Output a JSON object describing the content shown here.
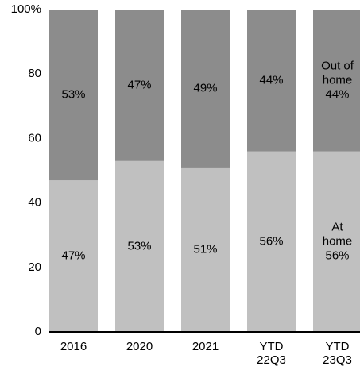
{
  "chart_data": {
    "type": "stacked-bar",
    "categories": [
      "2016",
      "2020",
      "2021",
      "YTD 22Q3",
      "YTD 23Q3"
    ],
    "series": [
      {
        "name": "At home",
        "color": "#c0c0c0",
        "label_color": "#000000",
        "values": [
          47,
          53,
          51,
          56,
          56
        ],
        "value_labels": [
          "47%",
          "53%",
          "51%",
          "56%",
          "56%"
        ]
      },
      {
        "name": "Out of home",
        "color": "#8c8c8c",
        "label_color": "#ffffff",
        "values": [
          53,
          47,
          49,
          44,
          44
        ],
        "value_labels": [
          "53%",
          "47%",
          "49%",
          "44%",
          "44%"
        ]
      }
    ],
    "ylim": [
      0,
      100
    ],
    "yticks": [
      0,
      20,
      40,
      60,
      80,
      {
        "value": 100,
        "label": "100%"
      }
    ],
    "legend": "inside-last-bar"
  }
}
